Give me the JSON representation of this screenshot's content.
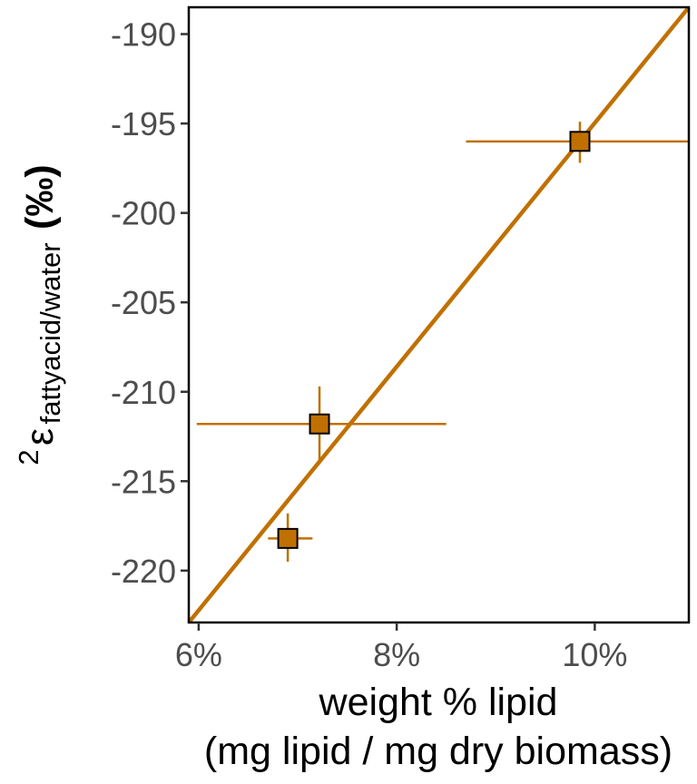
{
  "chart_data": {
    "type": "scatter",
    "xlabel_line1": "weight % lipid",
    "xlabel_line2": "(mg lipid / mg dry biomass)",
    "ylabel": {
      "superscript": "2",
      "symbol": "ε",
      "subscript": "fattyacid/water",
      "unit": "(‰)"
    },
    "xlim": [
      5.9,
      10.95
    ],
    "ylim": [
      -222.9,
      -188.5
    ],
    "x_ticks": [
      6,
      8,
      10
    ],
    "x_tick_labels": [
      "6%",
      "8%",
      "10%"
    ],
    "y_ticks": [
      -190,
      -195,
      -200,
      -205,
      -210,
      -215,
      -220
    ],
    "y_tick_labels": [
      "-190",
      "-195",
      "-200",
      "-205",
      "-210",
      "-215",
      "-220"
    ],
    "points": [
      {
        "x": 6.9,
        "y": -218.2,
        "xmin": 6.7,
        "xmax": 7.15,
        "ymin": -219.5,
        "ymax": -216.8
      },
      {
        "x": 7.22,
        "y": -211.8,
        "xmin": 5.98,
        "xmax": 8.5,
        "ymin": -214.0,
        "ymax": -209.7
      },
      {
        "x": 9.85,
        "y": -196.0,
        "xmin": 8.7,
        "xmax": 10.95,
        "ymin": -197.2,
        "ymax": -194.9
      }
    ],
    "fit_line": {
      "x": [
        5.9,
        10.95
      ],
      "y": [
        -222.9,
        -188.5
      ]
    },
    "color": "#c07000",
    "grid": false,
    "legend": "none"
  }
}
